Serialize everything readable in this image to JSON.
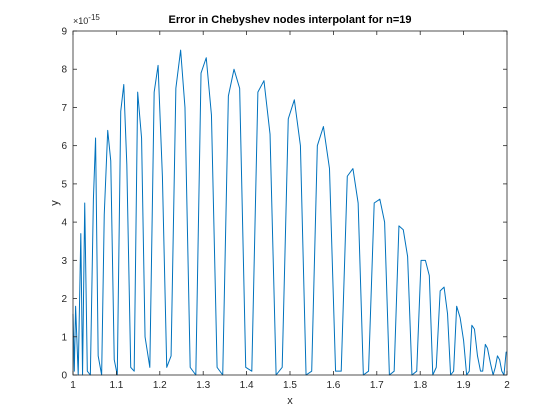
{
  "chart_data": {
    "type": "line",
    "title": "Error in Chebyshev nodes interpolant for n=19",
    "xlabel": "x",
    "ylabel": "y",
    "y_exponent_label": "×10",
    "y_exponent_power": "-15",
    "xlim": [
      1,
      2
    ],
    "ylim": [
      0,
      9
    ],
    "xticks": [
      1,
      1.1,
      1.2,
      1.3,
      1.4,
      1.5,
      1.6,
      1.7,
      1.8,
      1.9,
      2
    ],
    "xtick_labels": [
      "1",
      "1.1",
      "1.2",
      "1.3",
      "1.4",
      "1.5",
      "1.6",
      "1.7",
      "1.8",
      "1.9",
      "2"
    ],
    "yticks": [
      0,
      1,
      2,
      3,
      4,
      5,
      6,
      7,
      8,
      9
    ],
    "ytick_labels": [
      "0",
      "1",
      "2",
      "3",
      "4",
      "5",
      "6",
      "7",
      "8",
      "9"
    ],
    "grid": false,
    "series_color": "#0072BD",
    "series": [
      {
        "x": [
          1.0,
          1.003,
          1.006,
          1.012,
          1.018,
          1.022,
          1.027,
          1.033,
          1.04,
          1.047,
          1.052,
          1.058,
          1.066,
          1.072,
          1.08,
          1.087,
          1.095,
          1.102,
          1.11,
          1.117,
          1.124,
          1.133,
          1.141,
          1.149,
          1.158,
          1.166,
          1.177,
          1.187,
          1.196,
          1.206,
          1.216,
          1.226,
          1.237,
          1.248,
          1.258,
          1.27,
          1.283,
          1.295,
          1.307,
          1.319,
          1.332,
          1.345,
          1.358,
          1.371,
          1.384,
          1.398,
          1.412,
          1.426,
          1.44,
          1.454,
          1.468,
          1.482,
          1.496,
          1.51,
          1.524,
          1.537,
          1.55,
          1.563,
          1.577,
          1.591,
          1.605,
          1.618,
          1.632,
          1.645,
          1.657,
          1.669,
          1.681,
          1.694,
          1.707,
          1.718,
          1.729,
          1.74,
          1.751,
          1.761,
          1.771,
          1.781,
          1.792,
          1.802,
          1.812,
          1.821,
          1.829,
          1.837,
          1.846,
          1.855,
          1.863,
          1.87,
          1.877,
          1.884,
          1.892,
          1.9,
          1.907,
          1.913,
          1.919,
          1.925,
          1.932,
          1.939,
          1.944,
          1.95,
          1.955,
          1.962,
          1.968,
          1.973,
          1.978,
          1.983,
          1.988,
          1.993,
          1.998,
          2.0
        ],
        "y": [
          1.6,
          0.1,
          1.8,
          0.0,
          3.7,
          0.0,
          4.5,
          0.1,
          0.0,
          4.6,
          6.2,
          0.5,
          0.0,
          4.2,
          6.4,
          5.6,
          0.4,
          0.0,
          6.9,
          7.6,
          5.5,
          0.2,
          0.1,
          7.4,
          6.2,
          1.0,
          0.2,
          7.4,
          8.1,
          5.2,
          0.2,
          0.5,
          7.5,
          8.5,
          7.0,
          0.2,
          0.0,
          7.9,
          8.3,
          6.8,
          0.2,
          0.0,
          7.3,
          8.0,
          7.5,
          0.2,
          0.1,
          7.4,
          7.7,
          6.3,
          0.0,
          0.2,
          6.7,
          7.2,
          6.0,
          0.0,
          0.1,
          6.0,
          6.5,
          5.4,
          0.1,
          0.1,
          5.2,
          5.4,
          4.5,
          0.0,
          0.1,
          4.5,
          4.6,
          4.0,
          0.0,
          0.1,
          3.9,
          3.8,
          3.1,
          0.0,
          0.1,
          3.0,
          3.0,
          2.6,
          0.0,
          0.2,
          2.2,
          2.3,
          1.6,
          0.0,
          0.1,
          1.8,
          1.5,
          0.9,
          0.0,
          0.1,
          1.3,
          1.2,
          0.5,
          0.1,
          0.1,
          0.8,
          0.7,
          0.3,
          0.0,
          0.2,
          0.5,
          0.4,
          0.1,
          0.0,
          0.6,
          0.6
        ]
      }
    ]
  }
}
